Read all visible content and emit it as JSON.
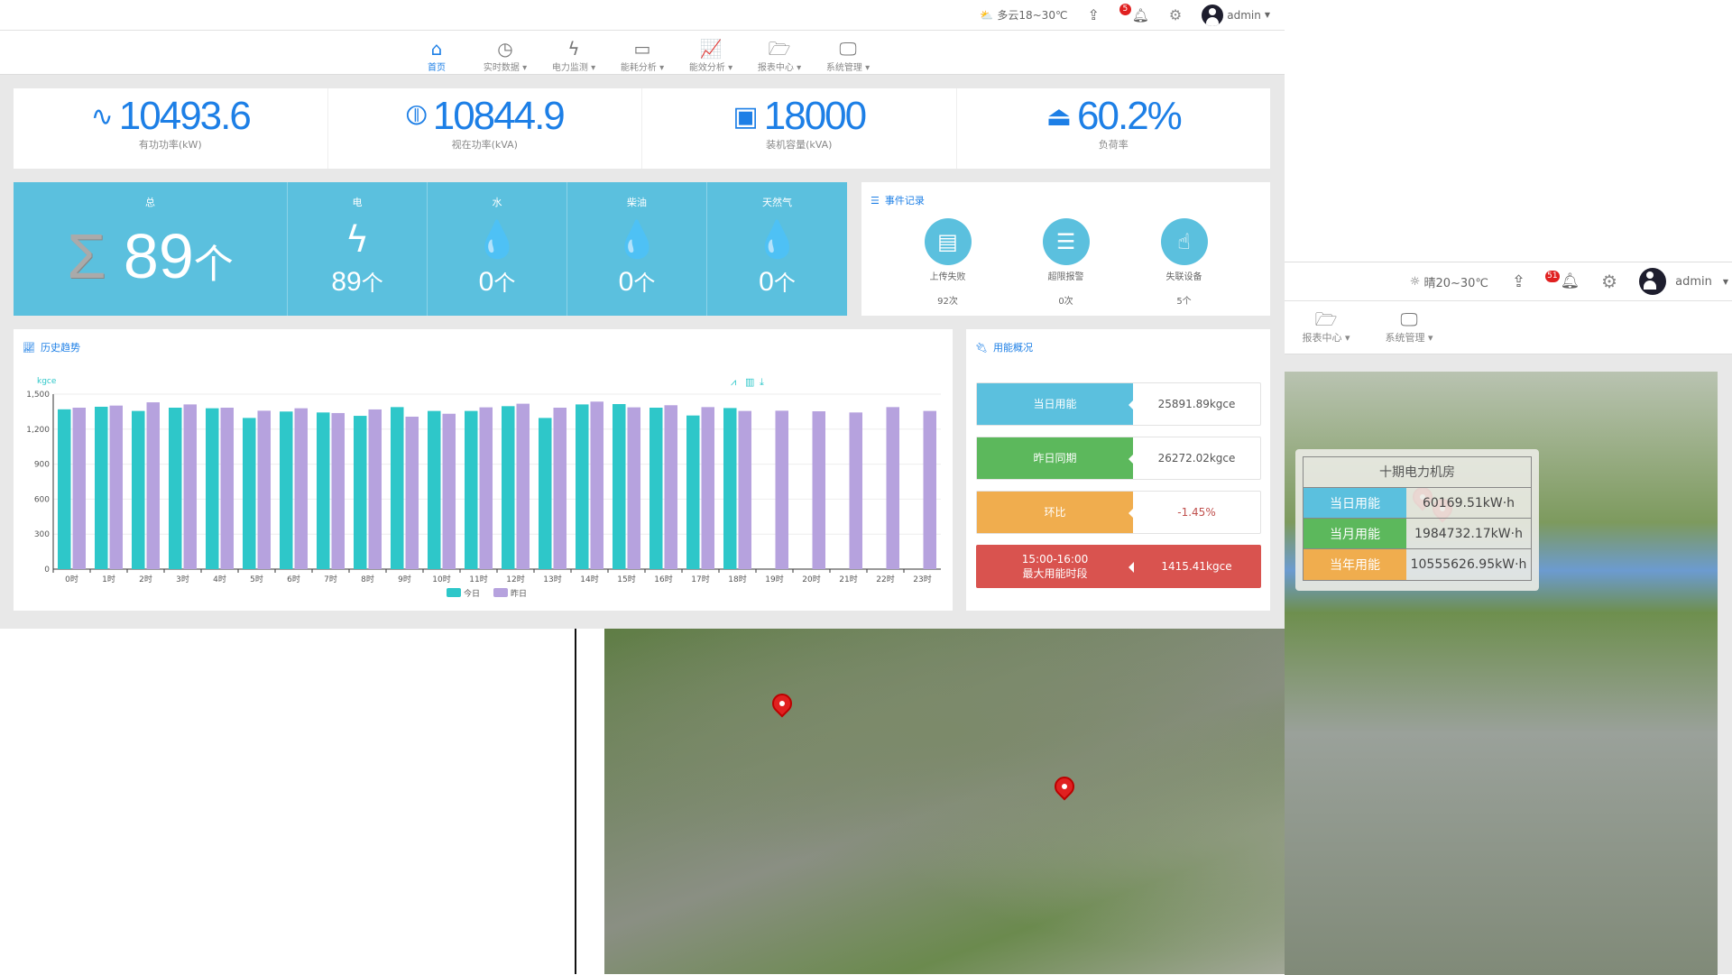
{
  "header": {
    "weather": "多云18~30℃",
    "notifications": "5",
    "user": "admin"
  },
  "nav": [
    {
      "label": "首页",
      "icon": "home-icon",
      "glyph": "⌂"
    },
    {
      "label": "实时数据 ▾",
      "icon": "clock-icon",
      "glyph": "◷"
    },
    {
      "label": "电力监测 ▾",
      "icon": "bolt-icon",
      "glyph": "ϟ"
    },
    {
      "label": "能耗分析 ▾",
      "icon": "battery-icon",
      "glyph": "▭"
    },
    {
      "label": "能效分析 ▾",
      "icon": "line-chart-icon",
      "glyph": "📈"
    },
    {
      "label": "报表中心 ▾",
      "icon": "folder-open-icon",
      "glyph": "🗁"
    },
    {
      "label": "系统管理 ▾",
      "icon": "monitor-icon",
      "glyph": "🖵"
    }
  ],
  "kpis": [
    {
      "value": "10493.6",
      "label": "有功功率(kW)",
      "icon": "heartbeat-icon",
      "glyph": "∿"
    },
    {
      "value": "10844.9",
      "label": "视在功率(kVA)",
      "icon": "waveform-circle-icon",
      "glyph": "⦷"
    },
    {
      "value": "18000",
      "label": "装机容量(kVA)",
      "icon": "power-box-icon",
      "glyph": "▣"
    },
    {
      "value": "60.2%",
      "label": "负荷率",
      "icon": "inbox-upload-icon",
      "glyph": "⏏"
    }
  ],
  "meters": {
    "total": {
      "label": "总",
      "value": "89",
      "unit": "个"
    },
    "items": [
      {
        "label": "电",
        "value": "89",
        "unit": "个",
        "glyph": "ϟ"
      },
      {
        "label": "水",
        "value": "0",
        "unit": "个",
        "glyph": "💧"
      },
      {
        "label": "柴油",
        "value": "0",
        "unit": "个",
        "glyph": "💧"
      },
      {
        "label": "天然气",
        "value": "0",
        "unit": "个",
        "glyph": "💧"
      }
    ]
  },
  "events": {
    "title": "事件记录",
    "items": [
      {
        "label": "上传失败",
        "count": "92次",
        "glyph": "▤"
      },
      {
        "label": "超限报警",
        "count": "0次",
        "glyph": "☰"
      },
      {
        "label": "失联设备",
        "count": "5个",
        "glyph": "☝"
      }
    ]
  },
  "history": {
    "title": "历史趋势"
  },
  "usage": {
    "title": "用能概况",
    "rows": [
      {
        "label": "当日用能",
        "value": "25891.89kgce",
        "color": "#5bc0de"
      },
      {
        "label": "昨日同期",
        "value": "26272.02kgce",
        "color": "#5cb85c"
      },
      {
        "label": "环比",
        "value": "-1.45%",
        "color": "#f0ad4e"
      }
    ],
    "peak": {
      "period": "15:00-16:00",
      "label": "最大用能时段",
      "value": "1415.41kgce",
      "color": "#d9534f"
    }
  },
  "overlay": {
    "weather": "晴20~30℃",
    "notifications": "51",
    "user": "admin",
    "nav": [
      "报表中心 ▾",
      "系统管理 ▾"
    ],
    "tooltip": {
      "title": "十期电力机房",
      "rows": [
        {
          "label": "当日用能",
          "value": "60169.51kW·h",
          "color": "#5bc0de"
        },
        {
          "label": "当月用能",
          "value": "1984732.17kW·h",
          "color": "#5cb85c"
        },
        {
          "label": "当年用能",
          "value": "10555626.95kW·h",
          "color": "#f0ad4e"
        }
      ]
    }
  },
  "chart_data": {
    "type": "bar",
    "ylabel": "kgce",
    "ylim": [
      0,
      1500
    ],
    "yticks": [
      "0",
      "300",
      "600",
      "900",
      "1,200",
      "1,500"
    ],
    "categories": [
      "0时",
      "1时",
      "2时",
      "3时",
      "4时",
      "5时",
      "6时",
      "7时",
      "8时",
      "9时",
      "10时",
      "11时",
      "12时",
      "13时",
      "14时",
      "15时",
      "16时",
      "17时",
      "18时",
      "19时",
      "20时",
      "21时",
      "22时",
      "23时"
    ],
    "series": [
      {
        "name": "今日",
        "color": "#2ec7c9",
        "values": [
          1370,
          1392,
          1356,
          1384,
          1379,
          1296,
          1351,
          1343,
          1314,
          1389,
          1356,
          1356,
          1397,
          1296,
          1412,
          1415,
          1384,
          1317,
          1381,
          null,
          null,
          null,
          null,
          null
        ]
      },
      {
        "name": "昨日",
        "color": "#b6a2de",
        "values": [
          1384,
          1402,
          1430,
          1412,
          1384,
          1358,
          1379,
          1338,
          1369,
          1307,
          1332,
          1387,
          1418,
          1384,
          1436,
          1387,
          1405,
          1389,
          1356,
          1358,
          1353,
          1343,
          1389,
          1356
        ]
      }
    ],
    "legend": "bottom",
    "grid": true
  }
}
